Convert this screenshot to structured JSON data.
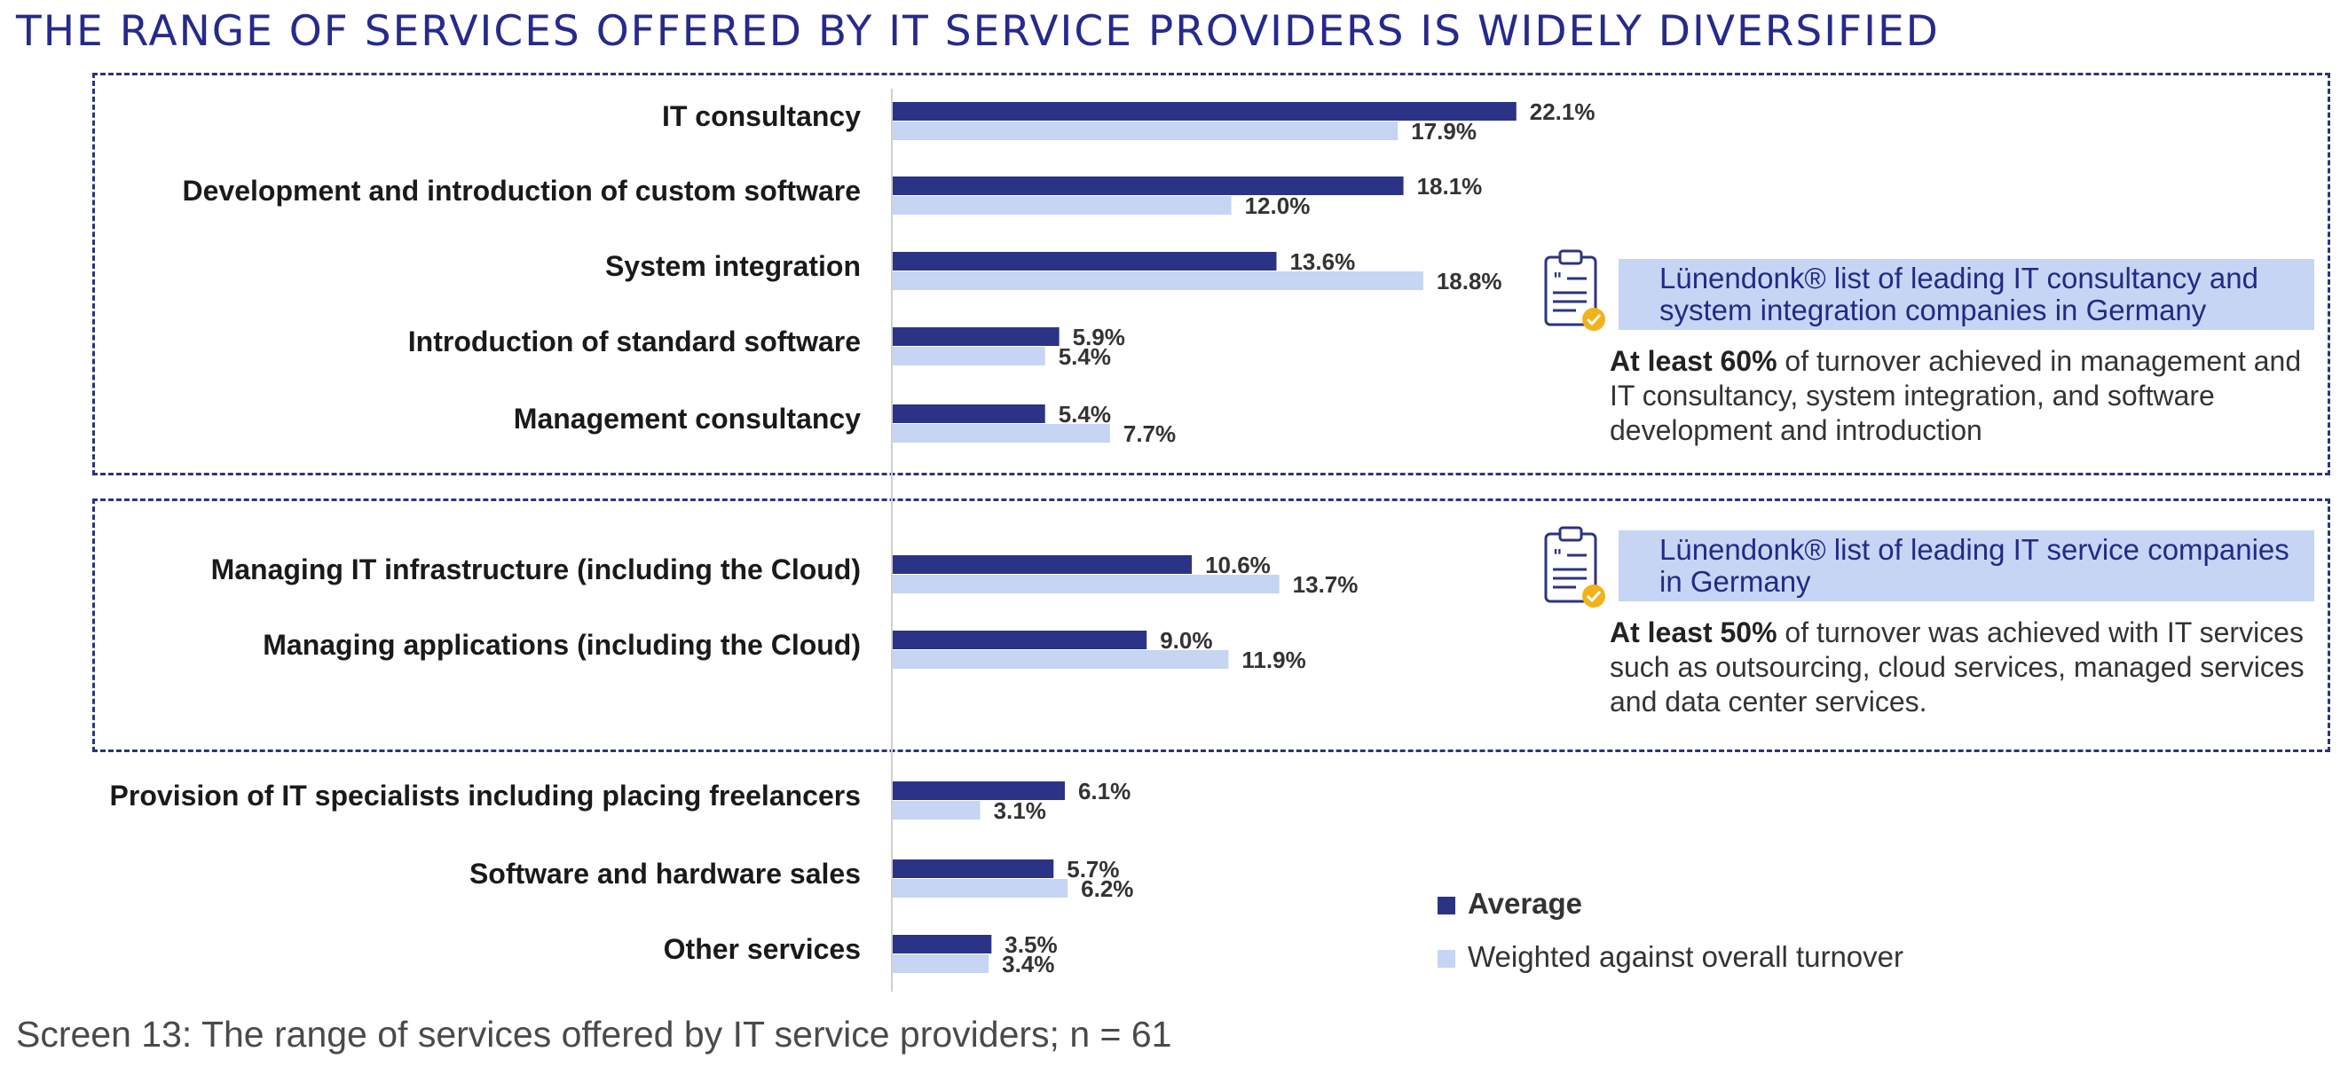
{
  "title": "THE RANGE OF SERVICES OFFERED BY IT SERVICE PROVIDERS IS WIDELY DIVERSIFIED",
  "caption": "Screen 13: The range of services offered by IT service providers; n = 61",
  "colors": {
    "average": "#2b3387",
    "weighted": "#c5d5f3",
    "accent": "#262a8c"
  },
  "chart_data": {
    "type": "bar",
    "orientation": "horizontal",
    "title": "THE RANGE OF SERVICES OFFERED BY IT SERVICE PROVIDERS IS WIDELY DIVERSIFIED",
    "categories": [
      "IT consultancy",
      "Development and introduction of custom software",
      "System integration",
      "Introduction of standard software",
      "Management consultancy",
      "Managing IT infrastructure (including the Cloud)",
      "Managing applications (including the Cloud)",
      "Provision of IT specialists including placing freelancers",
      "Software and hardware sales",
      "Other services"
    ],
    "series": [
      {
        "name": "Average",
        "values": [
          22.1,
          18.1,
          13.6,
          5.9,
          5.4,
          10.6,
          9.0,
          6.1,
          5.7,
          3.5
        ],
        "labels": [
          "22.1%",
          "18.1%",
          "13.6%",
          "5.9%",
          "5.4%",
          "10.6%",
          "9.0%",
          "6.1%",
          "5.7%",
          "3.5%"
        ]
      },
      {
        "name": "Weighted against overall turnover",
        "values": [
          17.9,
          12.0,
          18.8,
          5.4,
          7.7,
          13.7,
          11.9,
          3.1,
          6.2,
          3.4
        ],
        "labels": [
          "17.9%",
          "12.0%",
          "18.8%",
          "5.4%",
          "7.7%",
          "13.7%",
          "11.9%",
          "3.1%",
          "6.2%",
          "3.4%"
        ]
      }
    ],
    "legend_position": "bottom-right",
    "grid": false
  },
  "callouts": [
    {
      "banner": "Lünendonk® list of leading IT consultancy and system integration companies in Germany",
      "body_bold": "At least 60%",
      "body_rest": " of turnover achieved in management and IT consultancy, system integration, and software development and introduction",
      "icon": "clipboard-check-icon"
    },
    {
      "banner": "Lünendonk® list of leading IT service companies in Germany",
      "body_bold": "At least 50%",
      "body_rest": " of turnover was achieved with IT services such as outsourcing, cloud services, managed services and data center services.",
      "icon": "clipboard-check-icon"
    }
  ],
  "legend": [
    {
      "label": "Average"
    },
    {
      "label": "Weighted against overall turnover"
    }
  ]
}
